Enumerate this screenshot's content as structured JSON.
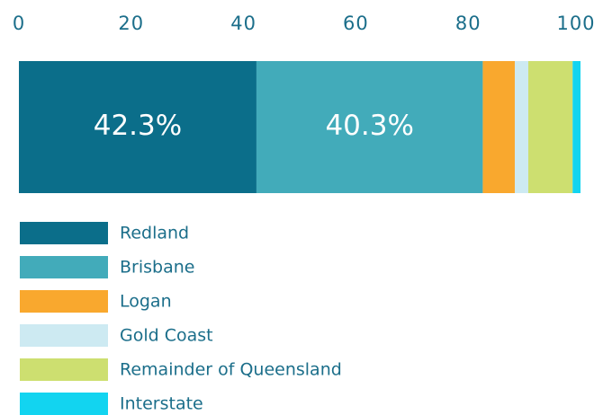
{
  "chart_data": {
    "type": "stacked-bar",
    "xlim": [
      0,
      100
    ],
    "xticks": [
      0,
      20,
      40,
      60,
      80,
      100
    ],
    "series": [
      {
        "name": "Redland",
        "color": "#0b6e8a",
        "values": [
          42.3
        ],
        "value_labels": [
          "42.3%"
        ]
      },
      {
        "name": "Brisbane",
        "color": "#42abba",
        "values": [
          40.3
        ],
        "value_labels": [
          "40.3%"
        ]
      },
      {
        "name": "Logan",
        "color": "#f9a82e",
        "values": [
          5.7
        ]
      },
      {
        "name": "Gold Coast",
        "color": "#cdeaf2",
        "values": [
          2.4
        ]
      },
      {
        "name": "Remainder of Queensland",
        "color": "#cddf70",
        "values": [
          7.9
        ]
      },
      {
        "name": "Interstate",
        "color": "#12d4f0",
        "values": [
          1.4
        ]
      }
    ]
  }
}
